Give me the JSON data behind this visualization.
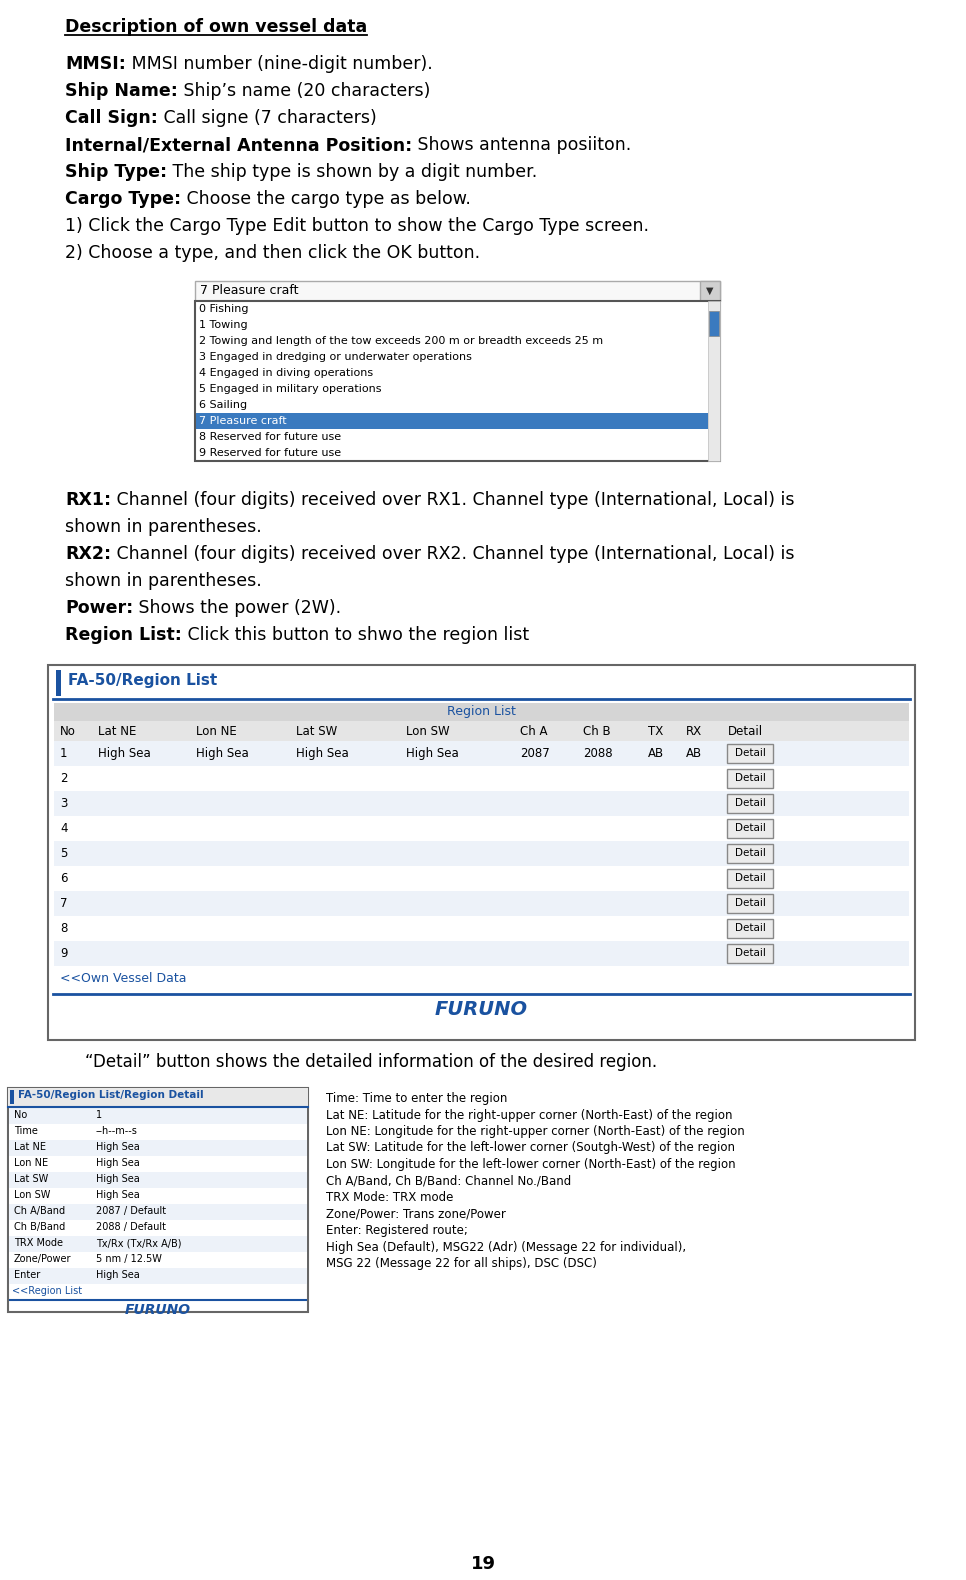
{
  "title": "Description of own vessel data",
  "bg_color": "#ffffff",
  "text_color": "#000000",
  "blue_color": "#1a52a0",
  "paragraphs": [
    {
      "bold": "MMSI:",
      "normal": " MMSI number (nine-digit number)."
    },
    {
      "bold": "Ship Name:",
      "normal": " Ship’s name (20 characters)"
    },
    {
      "bold": "Call Sign:",
      "normal": " Call signe (7 characters)"
    },
    {
      "bold": "Internal/External Antenna Position:",
      "normal": " Shows antenna posiiton."
    },
    {
      "bold": "Ship Type:",
      "normal": " The ship type is shown by a digit number."
    },
    {
      "bold": "Cargo Type:",
      "normal": " Choose the cargo type as below."
    },
    {
      "bold": "",
      "normal": "1) Click the Cargo Type Edit button to show the Cargo Type screen."
    },
    {
      "bold": "",
      "normal": "2) Choose a type, and then click the OK button."
    }
  ],
  "cargo_dropdown_selected": "7 Pleasure craft",
  "cargo_items": [
    "0 Fishing",
    "1 Towing",
    "2 Towing and length of the tow exceeds 200 m or breadth exceeds 25 m",
    "3 Engaged in dredging or underwater operations",
    "4 Engaged in diving operations",
    "5 Engaged in military operations",
    "6 Sailing",
    "7 Pleasure craft",
    "8 Reserved for future use",
    "9 Reserved for future use"
  ],
  "cargo_highlight_idx": 7,
  "rx_paragraphs": [
    {
      "bold": "RX1:",
      "normal": " Channel (four digits) received over RX1. Channel type (International, Local) is\nshown in parentheses."
    },
    {
      "bold": "RX2:",
      "normal": " Channel (four digits) received over RX2. Channel type (International, Local) is\nshown in parentheses."
    },
    {
      "bold": "Power:",
      "normal": " Shows the power (2W)."
    },
    {
      "bold": "Region List:",
      "normal": " Click this button to shwo the region list"
    }
  ],
  "region_title": "FA-50/Region List",
  "region_list_header": "Region List",
  "region_columns": [
    "No",
    "Lat NE",
    "Lon NE",
    "Lat SW",
    "Lon SW",
    "Ch A",
    "Ch B",
    "TX",
    "RX",
    "Detail"
  ],
  "region_row1_no": "1",
  "region_row1_data": [
    "High Sea",
    "High Sea",
    "High Sea",
    "High Sea",
    "2087",
    "2088",
    "AB",
    "AB"
  ],
  "own_vessel_link": "<<Own Vessel Data",
  "furuno_label": "FURUNO",
  "detail_intro": "“Detail” button shows the detailed information of the desired region.",
  "detail_panel_title": "FA-50/Region List/Region Detail",
  "detail_left_labels": [
    "No",
    "Time",
    "Lat NE",
    "Lon NE",
    "Lat SW",
    "Lon SW",
    "Ch A/Band",
    "Ch B/Band",
    "TRX Mode",
    "Zone/Power",
    "Enter"
  ],
  "detail_left_values": [
    "1",
    "--h--m--s",
    "High Sea",
    "High Sea",
    "High Sea",
    "High Sea",
    "2087 / Default",
    "2088 / Default",
    "Tx/Rx (Tx/Rx A/B)",
    "5 nm / 12.5W",
    "High Sea"
  ],
  "detail_right_lines": [
    "Time: Time to enter the region",
    "Lat NE: Latitude for the right-upper corner (North-East) of the region",
    "Lon NE: Longitude for the right-upper corner (North-East) of the region",
    "Lat SW: Latitude for the left-lower corner (Soutgh-West) of the region",
    "Lon SW: Longitude for the left-lower corner (North-East) of the region",
    "Ch A/Band, Ch B/Band: Channel No./Band",
    "TRX Mode: TRX mode",
    "Zone/Power: Trans zone/Power",
    "Enter: Registered route;",
    "High Sea (Default), MSG22 (Adr) (Message 22 for individual),",
    "MSG 22 (Message 22 for all ships), DSC (DSC)"
  ],
  "page_number": "19"
}
